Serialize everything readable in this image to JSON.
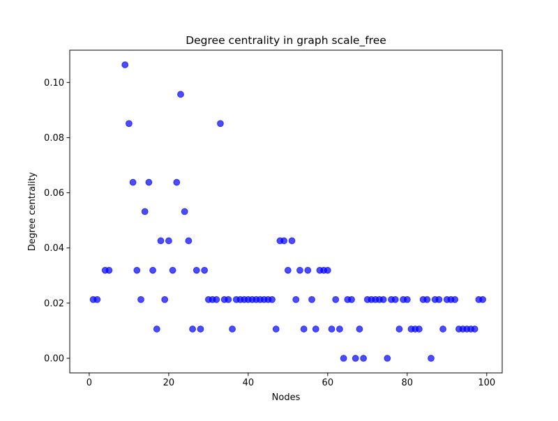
{
  "chart_data": {
    "type": "scatter",
    "title": "Degree centrality in graph scale_free",
    "xlabel": "Nodes",
    "ylabel": "Degree centrality",
    "xlim": [
      -4.9,
      103.9
    ],
    "ylim": [
      -0.0053,
      0.1117
    ],
    "xticks": [
      0,
      20,
      40,
      60,
      80,
      100
    ],
    "xtick_labels": [
      "0",
      "20",
      "40",
      "60",
      "80",
      "100"
    ],
    "yticks": [
      0.0,
      0.02,
      0.04,
      0.06,
      0.08,
      0.1
    ],
    "ytick_labels": [
      "0.00",
      "0.02",
      "0.04",
      "0.06",
      "0.08",
      "0.10"
    ],
    "grid": false,
    "marker_color": "#0000ff",
    "marker_alpha": 0.7,
    "x": [
      1,
      2,
      4,
      5,
      9,
      10,
      11,
      12,
      13,
      14,
      15,
      16,
      17,
      18,
      19,
      20,
      21,
      22,
      23,
      24,
      25,
      26,
      27,
      28,
      29,
      30,
      31,
      32,
      33,
      34,
      35,
      36,
      37,
      38,
      39,
      40,
      41,
      42,
      43,
      44,
      45,
      46,
      47,
      48,
      49,
      50,
      51,
      52,
      53,
      54,
      55,
      56,
      57,
      58,
      59,
      60,
      61,
      62,
      63,
      64,
      65,
      66,
      67,
      68,
      69,
      70,
      71,
      72,
      73,
      74,
      75,
      76,
      77,
      78,
      79,
      80,
      81,
      82,
      83,
      84,
      85,
      86,
      87,
      88,
      89,
      90,
      91,
      92,
      93,
      94,
      95,
      96,
      97,
      98,
      99
    ],
    "y": [
      0.0213,
      0.0213,
      0.0319,
      0.0319,
      0.1064,
      0.0851,
      0.0638,
      0.0319,
      0.0213,
      0.0532,
      0.0638,
      0.0319,
      0.0106,
      0.0426,
      0.0213,
      0.0426,
      0.0319,
      0.0638,
      0.0957,
      0.0532,
      0.0426,
      0.0106,
      0.0319,
      0.0106,
      0.0319,
      0.0213,
      0.0213,
      0.0213,
      0.0851,
      0.0213,
      0.0213,
      0.0106,
      0.0213,
      0.0213,
      0.0213,
      0.0213,
      0.0213,
      0.0213,
      0.0213,
      0.0213,
      0.0213,
      0.0213,
      0.0106,
      0.0426,
      0.0426,
      0.0319,
      0.0426,
      0.0213,
      0.0319,
      0.0106,
      0.0319,
      0.0213,
      0.0106,
      0.0319,
      0.0319,
      0.0319,
      0.0106,
      0.0213,
      0.0106,
      0.0,
      0.0213,
      0.0213,
      0.0,
      0.0106,
      0.0,
      0.0213,
      0.0213,
      0.0213,
      0.0213,
      0.0213,
      0.0,
      0.0213,
      0.0213,
      0.0106,
      0.0213,
      0.0213,
      0.0106,
      0.0106,
      0.0106,
      0.0213,
      0.0213,
      0.0,
      0.0213,
      0.0213,
      0.0106,
      0.0213,
      0.0213,
      0.0213,
      0.0106,
      0.0106,
      0.0106,
      0.0106,
      0.0106,
      0.0213,
      0.0213
    ]
  }
}
